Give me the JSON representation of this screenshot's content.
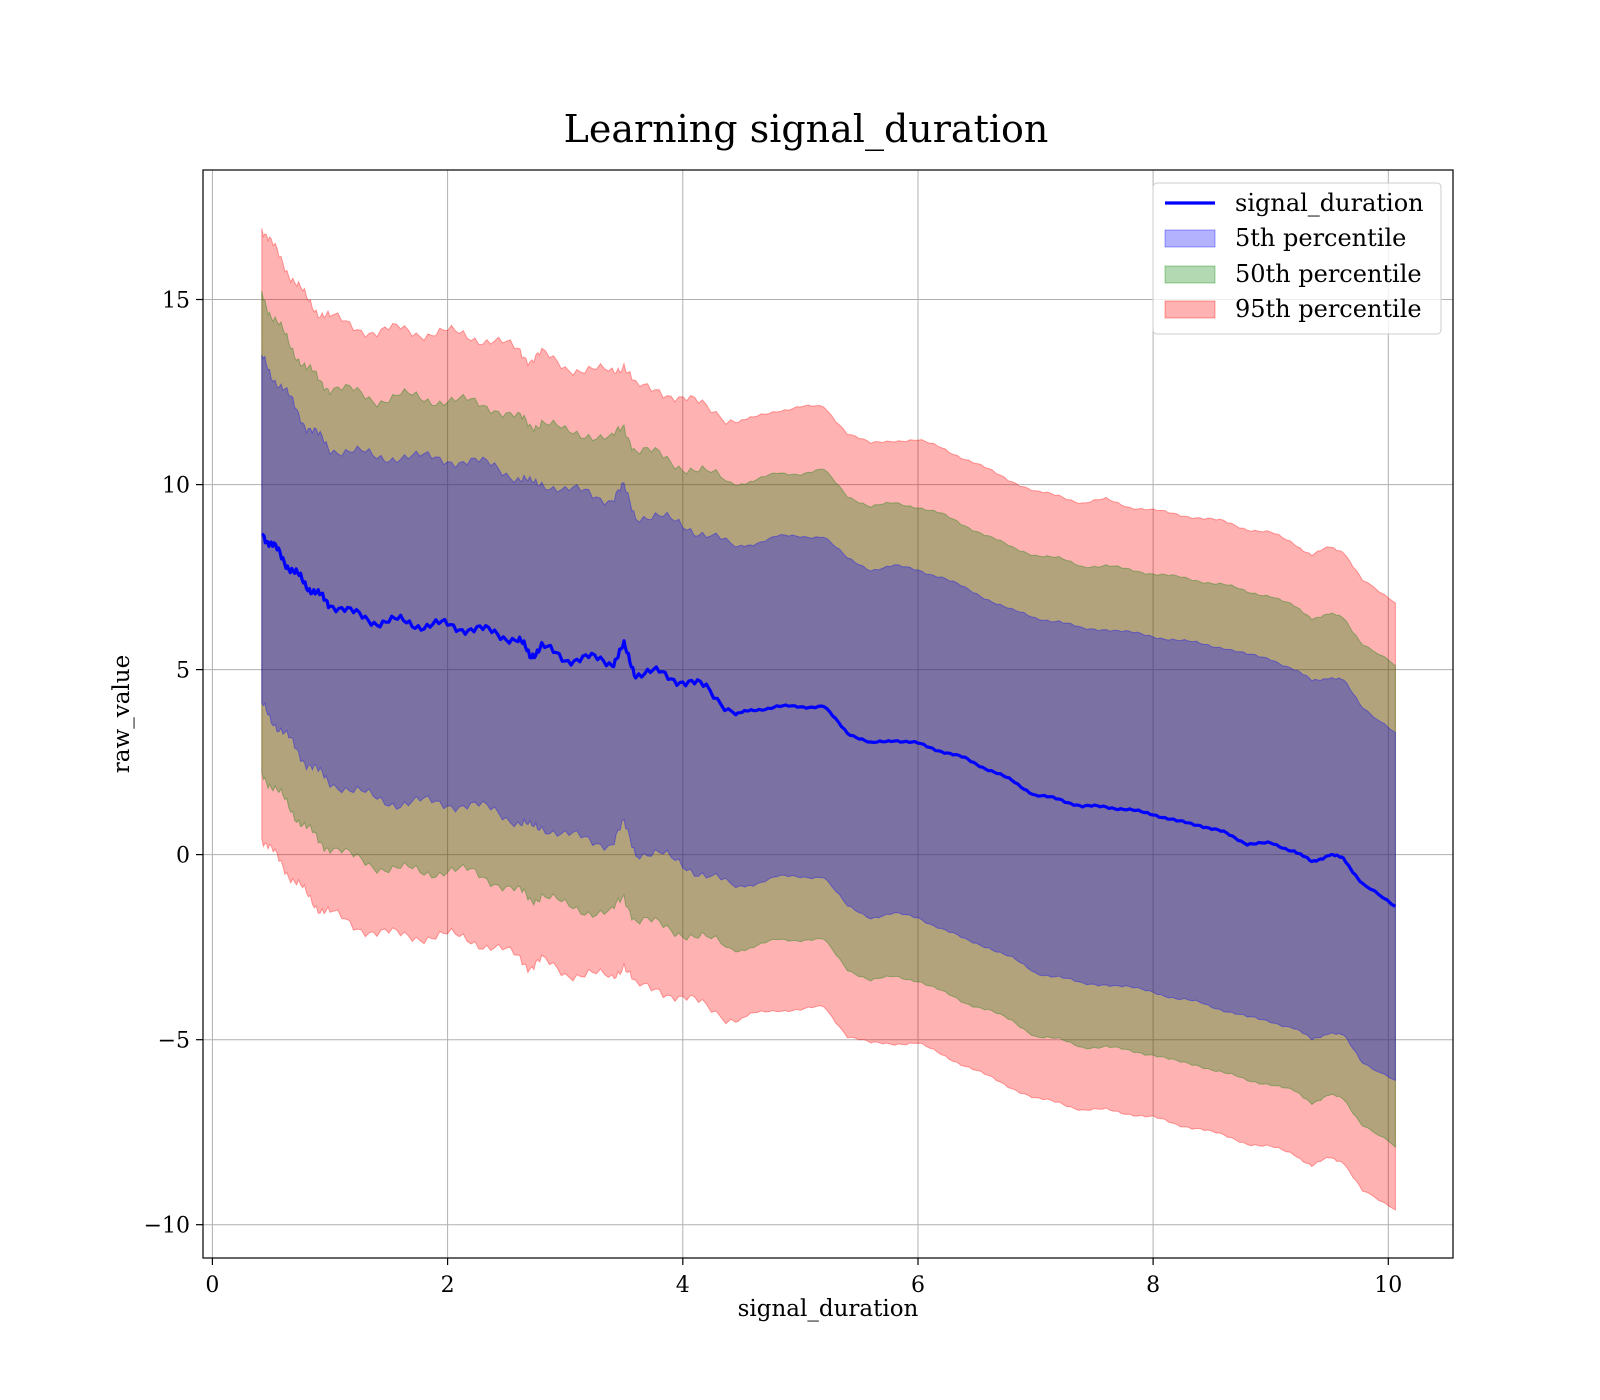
{
  "chart_data": {
    "type": "line",
    "title": "Learning signal_duration",
    "xlabel": "signal_duration",
    "ylabel": "raw_value",
    "xlim": [
      -0.08,
      10.55
    ],
    "ylim": [
      -10.9,
      18.5
    ],
    "x_ticks": [
      0,
      2,
      4,
      6,
      8,
      10
    ],
    "x_tick_labels": [
      "0",
      "2",
      "4",
      "6",
      "8",
      "10"
    ],
    "y_ticks": [
      -10,
      -5,
      0,
      5,
      10,
      15
    ],
    "y_tick_labels": [
      "−10",
      "−5",
      "0",
      "5",
      "10",
      "15"
    ],
    "grid": true,
    "legend_position": "top-right",
    "colors": {
      "line": "#0000ff",
      "p5": "#0000ff",
      "p50": "#008000",
      "p95": "#ff0000",
      "grid": "#b0b0b0"
    },
    "x": [
      0.42,
      0.5,
      0.6,
      0.7,
      0.8,
      0.9,
      1.0,
      1.2,
      1.4,
      1.6,
      1.8,
      2.0,
      2.2,
      2.4,
      2.6,
      2.7,
      2.8,
      3.0,
      3.2,
      3.4,
      3.5,
      3.6,
      3.8,
      4.0,
      4.2,
      4.45,
      4.6,
      4.8,
      5.0,
      5.2,
      5.4,
      5.6,
      5.8,
      6.0,
      6.2,
      6.4,
      6.6,
      6.8,
      7.0,
      7.2,
      7.4,
      7.6,
      7.8,
      8.0,
      8.2,
      8.4,
      8.6,
      8.8,
      9.0,
      9.2,
      9.35,
      9.5,
      9.62,
      9.78,
      10.06
    ],
    "series": [
      {
        "name": "signal_duration",
        "kind": "line",
        "values": [
          8.7,
          8.4,
          8.0,
          7.6,
          7.3,
          7.0,
          6.8,
          6.5,
          6.3,
          6.3,
          6.2,
          6.2,
          6.1,
          6.0,
          5.8,
          5.4,
          5.6,
          5.3,
          5.3,
          5.2,
          5.6,
          4.9,
          4.9,
          4.7,
          4.5,
          3.8,
          3.9,
          4.0,
          4.0,
          4.0,
          3.3,
          3.0,
          3.1,
          3.0,
          2.8,
          2.6,
          2.3,
          2.0,
          1.6,
          1.5,
          1.3,
          1.3,
          1.2,
          1.1,
          0.9,
          0.8,
          0.6,
          0.3,
          0.3,
          0.1,
          -0.2,
          0.0,
          -0.1,
          -0.8,
          -1.4
        ]
      },
      {
        "name": "5th percentile",
        "kind": "band",
        "upper": [
          13.4,
          13.0,
          12.6,
          12.1,
          11.6,
          11.3,
          11.0,
          10.9,
          10.7,
          10.8,
          10.7,
          10.7,
          10.6,
          10.5,
          10.2,
          10.0,
          10.1,
          9.8,
          9.8,
          9.6,
          9.9,
          9.2,
          9.1,
          8.9,
          8.7,
          8.3,
          8.4,
          8.6,
          8.6,
          8.6,
          8.0,
          7.7,
          7.8,
          7.7,
          7.5,
          7.2,
          6.9,
          6.6,
          6.4,
          6.3,
          6.1,
          6.1,
          6.0,
          5.9,
          5.8,
          5.7,
          5.6,
          5.4,
          5.3,
          5.0,
          4.7,
          4.8,
          4.7,
          4.0,
          3.3
        ],
        "lower": [
          4.0,
          3.7,
          3.3,
          2.9,
          2.5,
          2.2,
          2.0,
          1.7,
          1.5,
          1.4,
          1.4,
          1.4,
          1.3,
          1.2,
          0.9,
          0.7,
          0.8,
          0.5,
          0.4,
          0.3,
          0.8,
          0.1,
          0.0,
          -0.3,
          -0.5,
          -0.9,
          -0.8,
          -0.6,
          -0.6,
          -0.6,
          -1.4,
          -1.7,
          -1.6,
          -1.7,
          -2.0,
          -2.3,
          -2.5,
          -2.8,
          -3.2,
          -3.3,
          -3.5,
          -3.5,
          -3.6,
          -3.7,
          -3.9,
          -4.0,
          -4.2,
          -4.4,
          -4.5,
          -4.7,
          -5.0,
          -4.8,
          -4.9,
          -5.6,
          -6.1
        ]
      },
      {
        "name": "50th percentile",
        "kind": "band",
        "upper": [
          15.2,
          14.6,
          14.1,
          13.6,
          13.1,
          12.9,
          12.6,
          12.5,
          12.3,
          12.4,
          12.3,
          12.3,
          12.2,
          12.1,
          11.8,
          11.6,
          11.7,
          11.4,
          11.4,
          11.2,
          11.6,
          10.9,
          10.8,
          10.5,
          10.3,
          10.0,
          10.1,
          10.3,
          10.3,
          10.4,
          9.7,
          9.4,
          9.5,
          9.4,
          9.2,
          8.9,
          8.6,
          8.3,
          8.1,
          8.0,
          7.8,
          7.8,
          7.7,
          7.6,
          7.5,
          7.4,
          7.3,
          7.1,
          7.0,
          6.7,
          6.4,
          6.5,
          6.4,
          5.7,
          5.1
        ],
        "lower": [
          2.2,
          1.9,
          1.5,
          1.1,
          0.7,
          0.4,
          0.2,
          -0.1,
          -0.3,
          -0.4,
          -0.5,
          -0.4,
          -0.5,
          -0.7,
          -1.0,
          -1.2,
          -1.1,
          -1.4,
          -1.5,
          -1.6,
          -1.1,
          -1.8,
          -1.9,
          -2.1,
          -2.3,
          -2.6,
          -2.5,
          -2.3,
          -2.3,
          -2.3,
          -3.1,
          -3.4,
          -3.3,
          -3.4,
          -3.7,
          -4.0,
          -4.2,
          -4.5,
          -4.9,
          -5.0,
          -5.2,
          -5.2,
          -5.3,
          -5.4,
          -5.6,
          -5.7,
          -5.9,
          -6.1,
          -6.2,
          -6.4,
          -6.7,
          -6.5,
          -6.6,
          -7.3,
          -7.9
        ]
      },
      {
        "name": "95th percentile",
        "kind": "band",
        "upper": [
          17.0,
          16.5,
          16.0,
          15.5,
          15.0,
          14.7,
          14.5,
          14.3,
          14.1,
          14.2,
          14.1,
          14.1,
          14.0,
          13.9,
          13.6,
          13.4,
          13.5,
          13.2,
          13.1,
          13.0,
          13.3,
          12.6,
          12.6,
          12.3,
          12.1,
          11.7,
          11.8,
          12.0,
          12.1,
          12.1,
          11.4,
          11.1,
          11.2,
          11.2,
          11.0,
          10.7,
          10.4,
          10.1,
          9.8,
          9.7,
          9.5,
          9.6,
          9.4,
          9.3,
          9.2,
          9.1,
          9.0,
          8.8,
          8.7,
          8.4,
          8.1,
          8.3,
          8.2,
          7.4,
          6.8
        ],
        "lower": [
          0.5,
          0.1,
          -0.3,
          -0.7,
          -1.1,
          -1.4,
          -1.6,
          -1.9,
          -2.1,
          -2.2,
          -2.2,
          -2.2,
          -2.3,
          -2.5,
          -2.8,
          -3.0,
          -2.9,
          -3.2,
          -3.2,
          -3.4,
          -2.9,
          -3.6,
          -3.6,
          -3.9,
          -4.1,
          -4.5,
          -4.3,
          -4.2,
          -4.2,
          -4.1,
          -4.9,
          -5.1,
          -5.1,
          -5.1,
          -5.4,
          -5.7,
          -6.0,
          -6.3,
          -6.6,
          -6.7,
          -6.9,
          -6.9,
          -7.0,
          -7.1,
          -7.3,
          -7.4,
          -7.6,
          -7.8,
          -7.9,
          -8.1,
          -8.4,
          -8.2,
          -8.3,
          -9.1,
          -9.6
        ]
      }
    ]
  }
}
